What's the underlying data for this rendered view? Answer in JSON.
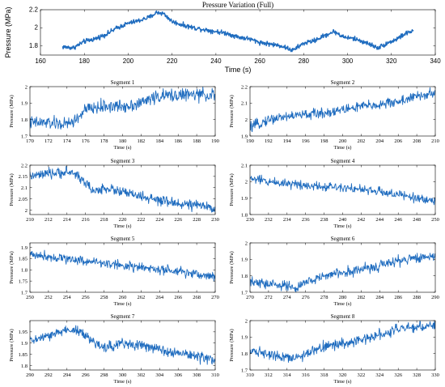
{
  "chart_data": [
    {
      "id": "full",
      "type": "line",
      "title": "Pressure Variation (Full)",
      "xlabel": "Time (s)",
      "ylabel": "Pressure (MPa)",
      "xlim": [
        160,
        340
      ],
      "ylim": [
        1.7,
        2.2
      ],
      "xticks": [
        160,
        180,
        200,
        220,
        240,
        260,
        280,
        300,
        320,
        340
      ],
      "yticks": [
        1.8,
        2,
        2.2
      ],
      "series": [
        {
          "color": "#1f6cbf",
          "x": [
            170,
            175,
            180,
            185,
            190,
            195,
            200,
            205,
            210,
            213,
            216,
            220,
            225,
            230,
            235,
            240,
            245,
            250,
            255,
            260,
            265,
            270,
            275,
            280,
            285,
            290,
            294,
            298,
            303,
            308,
            314,
            318,
            322,
            326,
            330
          ],
          "y": [
            1.79,
            1.78,
            1.85,
            1.88,
            1.93,
            2.0,
            2.05,
            2.08,
            2.12,
            2.17,
            2.16,
            2.07,
            2.03,
            2.0,
            1.98,
            1.96,
            1.94,
            1.9,
            1.88,
            1.84,
            1.82,
            1.8,
            1.75,
            1.83,
            1.86,
            1.92,
            1.96,
            1.9,
            1.88,
            1.84,
            1.78,
            1.83,
            1.87,
            1.93,
            1.97
          ],
          "noise": 0.018
        }
      ]
    },
    {
      "id": "s1",
      "type": "line",
      "title": "Segment 1",
      "xlabel": "Time (s)",
      "ylabel": "Pressure (MPa)",
      "xlim": [
        170,
        190
      ],
      "ylim": [
        1.7,
        2.0
      ],
      "xticks": [
        170,
        172,
        174,
        176,
        178,
        180,
        182,
        184,
        186,
        188,
        190
      ],
      "yticks": [
        1.7,
        1.8,
        1.9,
        2
      ],
      "series": [
        {
          "color": "#1f6cbf",
          "x": [
            170,
            172,
            174,
            175,
            176,
            178,
            180,
            182,
            183,
            184,
            186,
            188,
            190
          ],
          "y": [
            1.78,
            1.78,
            1.77,
            1.8,
            1.86,
            1.88,
            1.88,
            1.9,
            1.93,
            1.94,
            1.95,
            1.95,
            1.95
          ],
          "noise": 0.028
        }
      ]
    },
    {
      "id": "s2",
      "type": "line",
      "title": "Segment 2",
      "xlabel": "Time (s)",
      "ylabel": "Pressure (MPa)",
      "xlim": [
        190,
        210
      ],
      "ylim": [
        1.9,
        2.2
      ],
      "xticks": [
        190,
        192,
        194,
        196,
        198,
        200,
        202,
        204,
        206,
        208,
        210
      ],
      "yticks": [
        1.9,
        2,
        2.1,
        2.2
      ],
      "series": [
        {
          "color": "#1f6cbf",
          "x": [
            190,
            192,
            194,
            196,
            198,
            200,
            202,
            204,
            206,
            208,
            210
          ],
          "y": [
            1.95,
            2.0,
            2.02,
            2.03,
            2.04,
            2.06,
            2.08,
            2.09,
            2.11,
            2.14,
            2.16
          ],
          "noise": 0.022
        }
      ]
    },
    {
      "id": "s3",
      "type": "line",
      "title": "Segment 3",
      "xlabel": "Time (s)",
      "ylabel": "Pressure (MPa)",
      "xlim": [
        210,
        230
      ],
      "ylim": [
        1.98,
        2.2
      ],
      "xticks": [
        210,
        212,
        214,
        216,
        218,
        220,
        222,
        224,
        226,
        228,
        230
      ],
      "yticks": [
        2,
        2.05,
        2.1,
        2.15,
        2.2
      ],
      "series": [
        {
          "color": "#1f6cbf",
          "x": [
            210,
            212,
            214,
            215,
            216,
            217,
            218,
            220,
            222,
            224,
            226,
            228,
            230
          ],
          "y": [
            2.15,
            2.16,
            2.17,
            2.16,
            2.12,
            2.08,
            2.1,
            2.08,
            2.06,
            2.04,
            2.03,
            2.02,
            2.01
          ],
          "noise": 0.016
        }
      ]
    },
    {
      "id": "s4",
      "type": "line",
      "title": "Segment 4",
      "xlabel": "Time (s)",
      "ylabel": "Pressure (MPa)",
      "xlim": [
        230,
        250
      ],
      "ylim": [
        1.8,
        2.1
      ],
      "xticks": [
        230,
        232,
        234,
        236,
        238,
        240,
        242,
        244,
        246,
        248,
        250
      ],
      "yticks": [
        1.8,
        1.9,
        2,
        2.1
      ],
      "series": [
        {
          "color": "#1f6cbf",
          "x": [
            230,
            232,
            234,
            236,
            238,
            240,
            242,
            244,
            246,
            248,
            250
          ],
          "y": [
            2.02,
            2.0,
            1.99,
            1.98,
            1.97,
            1.97,
            1.95,
            1.94,
            1.92,
            1.9,
            1.88
          ],
          "noise": 0.02
        }
      ]
    },
    {
      "id": "s5",
      "type": "line",
      "title": "Segment 5",
      "xlabel": "Time (s)",
      "ylabel": "Pressure (MPa)",
      "xlim": [
        250,
        270
      ],
      "ylim": [
        1.7,
        1.92
      ],
      "xticks": [
        250,
        252,
        254,
        256,
        258,
        260,
        262,
        264,
        266,
        268,
        270
      ],
      "yticks": [
        1.7,
        1.75,
        1.8,
        1.85,
        1.9
      ],
      "series": [
        {
          "color": "#1f6cbf",
          "x": [
            250,
            252,
            254,
            256,
            258,
            260,
            262,
            264,
            266,
            268,
            270
          ],
          "y": [
            1.87,
            1.86,
            1.85,
            1.84,
            1.83,
            1.82,
            1.81,
            1.8,
            1.79,
            1.78,
            1.77
          ],
          "noise": 0.015
        }
      ]
    },
    {
      "id": "s6",
      "type": "line",
      "title": "Segment 6",
      "xlabel": "Time (s)",
      "ylabel": "Pressure (MPa)",
      "xlim": [
        270,
        290
      ],
      "ylim": [
        1.7,
        2.0
      ],
      "xticks": [
        270,
        272,
        274,
        276,
        278,
        280,
        282,
        284,
        286,
        288,
        290
      ],
      "yticks": [
        1.7,
        1.8,
        1.9,
        2
      ],
      "series": [
        {
          "color": "#1f6cbf",
          "x": [
            270,
            272,
            274,
            275,
            276,
            278,
            280,
            282,
            284,
            286,
            288,
            290
          ],
          "y": [
            1.76,
            1.75,
            1.74,
            1.72,
            1.76,
            1.8,
            1.82,
            1.84,
            1.86,
            1.89,
            1.91,
            1.92
          ],
          "noise": 0.022
        }
      ]
    },
    {
      "id": "s7",
      "type": "line",
      "title": "Segment 7",
      "xlabel": "Time (s)",
      "ylabel": "Pressure (MPa)",
      "xlim": [
        290,
        310
      ],
      "ylim": [
        1.78,
        2.0
      ],
      "xticks": [
        290,
        292,
        294,
        296,
        298,
        300,
        302,
        304,
        306,
        308,
        310
      ],
      "yticks": [
        1.8,
        1.85,
        1.9,
        1.95
      ],
      "series": [
        {
          "color": "#1f6cbf",
          "x": [
            290,
            292,
            294,
            295,
            296,
            297,
            298,
            300,
            302,
            304,
            306,
            308,
            310
          ],
          "y": [
            1.91,
            1.93,
            1.96,
            1.96,
            1.93,
            1.9,
            1.88,
            1.9,
            1.89,
            1.87,
            1.86,
            1.84,
            1.82
          ],
          "noise": 0.016
        }
      ]
    },
    {
      "id": "s8",
      "type": "line",
      "title": "Segment 8",
      "xlabel": "Time (s)",
      "ylabel": "Pressure (MPa)",
      "xlim": [
        310,
        330
      ],
      "ylim": [
        1.7,
        2.0
      ],
      "xticks": [
        310,
        312,
        314,
        316,
        318,
        320,
        322,
        324,
        326,
        328,
        330
      ],
      "yticks": [
        1.7,
        1.8,
        1.9,
        2
      ],
      "series": [
        {
          "color": "#1f6cbf",
          "x": [
            310,
            312,
            314,
            315,
            316,
            318,
            320,
            322,
            324,
            326,
            328,
            330
          ],
          "y": [
            1.82,
            1.8,
            1.78,
            1.77,
            1.8,
            1.84,
            1.86,
            1.88,
            1.92,
            1.95,
            1.96,
            1.97
          ],
          "noise": 0.022
        }
      ]
    }
  ]
}
